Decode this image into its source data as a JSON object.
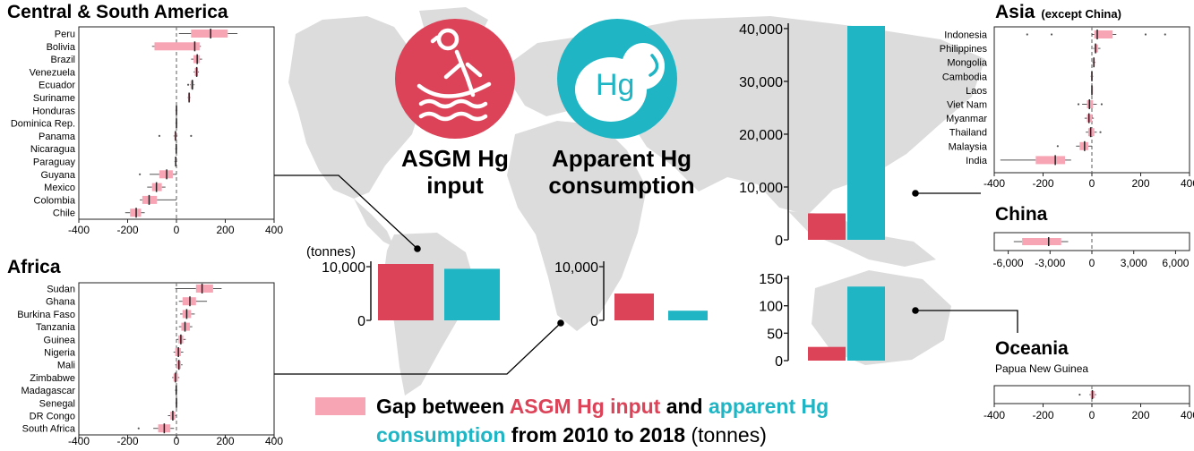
{
  "colors": {
    "asgm": "#dc4358",
    "apparent": "#1fb5c4",
    "gap": "#f7a5b5",
    "map": "#dcdcdc",
    "tick": "#111111"
  },
  "icons": {
    "asgm": "asgm-miner-panning-icon",
    "apparent": "mercury-hg-bubble-icon"
  },
  "headings": {
    "csa": "Central & South America",
    "africa": "Africa",
    "asia": "Asia",
    "asia_note": "(except China)",
    "china": "China",
    "oceania": "Oceania",
    "oceania_sub": "Papua New Guinea"
  },
  "icon_labels": {
    "asgm_line1": "ASGM Hg",
    "asgm_line2": "input",
    "apparent_line1": "Apparent Hg",
    "apparent_line2": "consumption"
  },
  "unit_label": "(tonnes)",
  "legend": {
    "part1": "Gap between ",
    "part2": "ASGM Hg input",
    "part3": " and ",
    "part4": "apparent Hg",
    "part5": "consumption",
    "part6": " from 2010 to 2018 ",
    "part7": "(tonnes)"
  },
  "chart_data": [
    {
      "type": "box",
      "id": "csa",
      "title": "Central & South America",
      "xlim": [
        -400,
        400
      ],
      "ticks": [
        "-400",
        "-200",
        "0",
        "200",
        "400"
      ],
      "categories": [
        "Peru",
        "Bolivia",
        "Brazil",
        "Venezuela",
        "Ecuador",
        "Suriname",
        "Honduras",
        "Dominica Rep.",
        "Panama",
        "Nicaragua",
        "Paraguay",
        "Guyana",
        "Mexico",
        "Colombia",
        "Chile"
      ],
      "boxes": [
        {
          "q1": 60,
          "median": 140,
          "q3": 210,
          "lo": 10,
          "hi": 250,
          "out": []
        },
        {
          "q1": -90,
          "median": 75,
          "q3": 95,
          "lo": -100,
          "hi": 100,
          "out": []
        },
        {
          "q1": 70,
          "median": 85,
          "q3": 95,
          "lo": 60,
          "hi": 105,
          "out": []
        },
        {
          "q1": 75,
          "median": 83,
          "q3": 88,
          "lo": 70,
          "hi": 92,
          "out": []
        },
        {
          "q1": 58,
          "median": 65,
          "q3": 70,
          "lo": 55,
          "hi": 74,
          "out": [
            48
          ]
        },
        {
          "q1": 48,
          "median": 52,
          "q3": 56,
          "lo": 46,
          "hi": 58,
          "out": []
        },
        {
          "q1": -2,
          "median": 0,
          "q3": 2,
          "lo": -4,
          "hi": 4,
          "out": []
        },
        {
          "q1": -2,
          "median": 0,
          "q3": 2,
          "lo": -4,
          "hi": 4,
          "out": []
        },
        {
          "q1": -8,
          "median": -4,
          "q3": 0,
          "lo": -12,
          "hi": 4,
          "out": [
            -70,
            60
          ]
        },
        {
          "q1": -3,
          "median": -1,
          "q3": 1,
          "lo": -5,
          "hi": 3,
          "out": []
        },
        {
          "q1": -6,
          "median": -3,
          "q3": 0,
          "lo": -8,
          "hi": 2,
          "out": []
        },
        {
          "q1": -70,
          "median": -40,
          "q3": -15,
          "lo": -110,
          "hi": 0,
          "out": [
            -150
          ]
        },
        {
          "q1": -100,
          "median": -82,
          "q3": -60,
          "lo": -120,
          "hi": -45,
          "out": []
        },
        {
          "q1": -140,
          "median": -112,
          "q3": -80,
          "lo": -150,
          "hi": 0,
          "out": []
        },
        {
          "q1": -190,
          "median": -165,
          "q3": -145,
          "lo": -210,
          "hi": -130,
          "out": []
        }
      ]
    },
    {
      "type": "box",
      "id": "africa",
      "title": "Africa",
      "xlim": [
        -400,
        400
      ],
      "ticks": [
        "-400",
        "-200",
        "0",
        "200",
        "400"
      ],
      "categories": [
        "Sudan",
        "Ghana",
        "Burkina Faso",
        "Tanzania",
        "Guinea",
        "Nigeria",
        "Mali",
        "Zimbabwe",
        "Madagascar",
        "Senegal",
        "DR Congo",
        "South Africa"
      ],
      "boxes": [
        {
          "q1": 80,
          "median": 105,
          "q3": 150,
          "lo": -5,
          "hi": 185,
          "out": []
        },
        {
          "q1": 25,
          "median": 55,
          "q3": 80,
          "lo": 10,
          "hi": 125,
          "out": []
        },
        {
          "q1": 25,
          "median": 42,
          "q3": 60,
          "lo": 15,
          "hi": 75,
          "out": []
        },
        {
          "q1": 20,
          "median": 35,
          "q3": 55,
          "lo": 10,
          "hi": 65,
          "out": []
        },
        {
          "q1": 8,
          "median": 18,
          "q3": 28,
          "lo": 0,
          "hi": 38,
          "out": []
        },
        {
          "q1": -5,
          "median": 8,
          "q3": 18,
          "lo": -12,
          "hi": 28,
          "out": []
        },
        {
          "q1": 0,
          "median": 10,
          "q3": 18,
          "lo": -5,
          "hi": 25,
          "out": []
        },
        {
          "q1": -12,
          "median": -4,
          "q3": 6,
          "lo": -18,
          "hi": 12,
          "out": []
        },
        {
          "q1": -3,
          "median": -1,
          "q3": 1,
          "lo": -6,
          "hi": 4,
          "out": []
        },
        {
          "q1": -2,
          "median": 0,
          "q3": 2,
          "lo": -4,
          "hi": 4,
          "out": []
        },
        {
          "q1": -25,
          "median": -15,
          "q3": -5,
          "lo": -35,
          "hi": 0,
          "out": []
        },
        {
          "q1": -75,
          "median": -50,
          "q3": -25,
          "lo": -95,
          "hi": -10,
          "out": [
            -155
          ]
        }
      ]
    },
    {
      "type": "box",
      "id": "asia",
      "title": "Asia (except China)",
      "xlim": [
        -400,
        400
      ],
      "ticks": [
        "-400",
        "-200",
        "0",
        "200",
        "400"
      ],
      "categories": [
        "Indonesia",
        "Philippines",
        "Mongolia",
        "Cambodia",
        "Laos",
        "Viet Nam",
        "Myanmar",
        "Thailand",
        "Malaysia",
        "India"
      ],
      "boxes": [
        {
          "q1": 10,
          "median": 22,
          "q3": 85,
          "lo": 0,
          "hi": 100,
          "out": [
            -265,
            -165,
            220,
            300
          ]
        },
        {
          "q1": 10,
          "median": 15,
          "q3": 25,
          "lo": 5,
          "hi": 35,
          "out": []
        },
        {
          "q1": 5,
          "median": 8,
          "q3": 12,
          "lo": 2,
          "hi": 15,
          "out": []
        },
        {
          "q1": -3,
          "median": 0,
          "q3": 3,
          "lo": -5,
          "hi": 5,
          "out": []
        },
        {
          "q1": -1,
          "median": 0,
          "q3": 1,
          "lo": -2,
          "hi": 2,
          "out": []
        },
        {
          "q1": -20,
          "median": -10,
          "q3": 5,
          "lo": -40,
          "hi": 20,
          "out": [
            -55,
            40
          ]
        },
        {
          "q1": -20,
          "median": -12,
          "q3": 0,
          "lo": -30,
          "hi": 8,
          "out": []
        },
        {
          "q1": -15,
          "median": -5,
          "q3": 10,
          "lo": -25,
          "hi": 20,
          "out": [
            35
          ]
        },
        {
          "q1": -50,
          "median": -30,
          "q3": -15,
          "lo": -65,
          "hi": 0,
          "out": [
            -140
          ]
        },
        {
          "q1": -230,
          "median": -150,
          "q3": -110,
          "lo": -375,
          "hi": -85,
          "out": []
        }
      ]
    },
    {
      "type": "box",
      "id": "china",
      "title": "China",
      "xlim": [
        -7000,
        7000
      ],
      "ticks": [
        "-6,000",
        "-3,000",
        "0",
        "3,000",
        "6,000"
      ],
      "tick_values": [
        -6000,
        -3000,
        0,
        3000,
        6000
      ],
      "categories": [
        ""
      ],
      "boxes": [
        {
          "q1": -5000,
          "median": -3100,
          "q3": -2200,
          "lo": -5600,
          "hi": -1700,
          "out": []
        }
      ]
    },
    {
      "type": "box",
      "id": "oceania",
      "title": "Oceania",
      "subtitle": "Papua New Guinea",
      "xlim": [
        -400,
        400
      ],
      "ticks": [
        "-400",
        "-200",
        "0",
        "200",
        "400"
      ],
      "categories": [
        ""
      ],
      "boxes": [
        {
          "q1": -5,
          "median": 2,
          "q3": 12,
          "lo": -10,
          "hi": 18,
          "out": [
            -50
          ]
        }
      ]
    },
    {
      "type": "bar",
      "id": "bars-csa",
      "categories": [
        "ASGM Hg input",
        "Apparent Hg consumption"
      ],
      "values": [
        10500,
        9600
      ],
      "ylim": [
        0,
        11000
      ],
      "ticks": [
        "0",
        "10,000"
      ],
      "tick_values": [
        0,
        10000
      ]
    },
    {
      "type": "bar",
      "id": "bars-africa",
      "categories": [
        "ASGM Hg input",
        "Apparent Hg consumption"
      ],
      "values": [
        5000,
        1800
      ],
      "ylim": [
        0,
        11000
      ],
      "ticks": [
        "0",
        "10,000"
      ],
      "tick_values": [
        0,
        10000
      ]
    },
    {
      "type": "bar",
      "id": "bars-asia",
      "categories": [
        "ASGM Hg input",
        "Apparent Hg consumption"
      ],
      "values": [
        5000,
        40500
      ],
      "ylim": [
        0,
        41000
      ],
      "ticks": [
        "0",
        "10,000",
        "20,000",
        "30,000",
        "40,000"
      ],
      "tick_values": [
        0,
        10000,
        20000,
        30000,
        40000
      ]
    },
    {
      "type": "bar",
      "id": "bars-oceania",
      "categories": [
        "ASGM Hg input",
        "Apparent Hg consumption"
      ],
      "values": [
        25,
        135
      ],
      "ylim": [
        0,
        155
      ],
      "ticks": [
        "0",
        "50",
        "100",
        "150"
      ],
      "tick_values": [
        0,
        50,
        100,
        150
      ]
    }
  ]
}
